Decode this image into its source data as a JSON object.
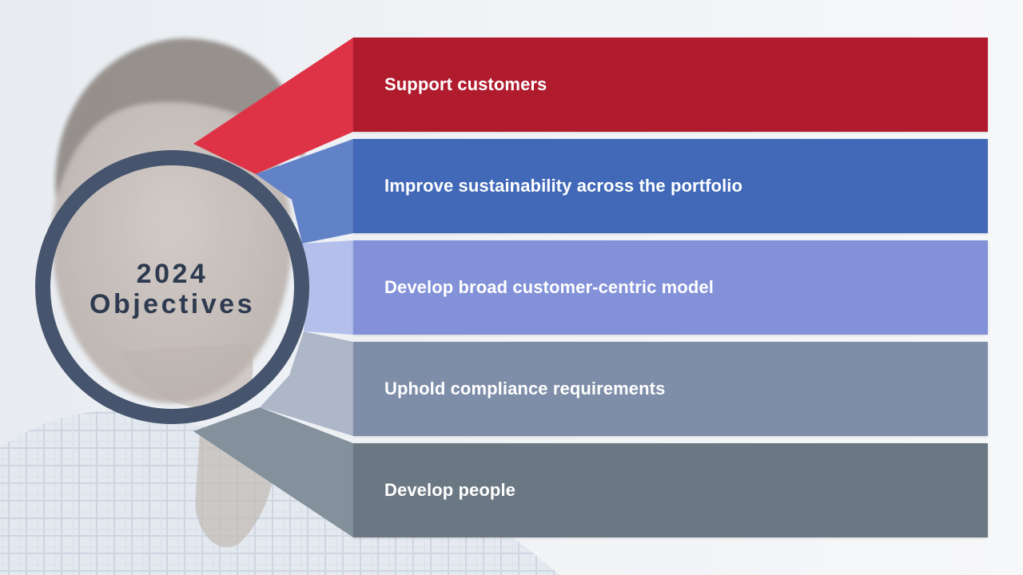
{
  "center": {
    "year": "2024",
    "label": "Objectives"
  },
  "objectives": [
    {
      "label": "Support customers",
      "color": "#b01b2e",
      "wedge_color": "#de3346"
    },
    {
      "label": "Improve sustainability across the portfolio",
      "color": "#4169b8",
      "wedge_color": "#6282c8"
    },
    {
      "label": "Develop broad customer-centric model",
      "color": "#8291d8",
      "wedge_color": "#b4bfec"
    },
    {
      "label": "Uphold compliance requirements",
      "color": "#7e8da8",
      "wedge_color": "#aeb7c8"
    },
    {
      "label": "Develop people",
      "color": "#6b7883",
      "wedge_color": "#84919c"
    }
  ],
  "colors": {
    "ring": "#46546d",
    "center_text": "#2e3a4f"
  }
}
